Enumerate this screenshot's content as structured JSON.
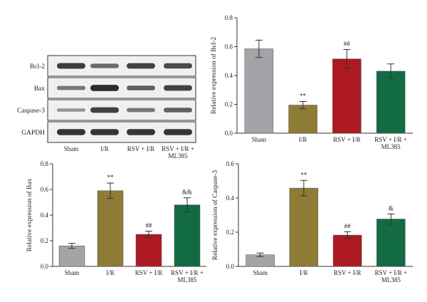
{
  "colors": {
    "sham": "#a3a3a8",
    "ir": "#8e7b36",
    "rsv_ir": "#ad1a22",
    "rsv_ir_ml385": "#126b42",
    "band": "#1a1a1a",
    "membrane": "#f0f0f0"
  },
  "blot": {
    "rows": [
      "Bcl-2",
      "Bax",
      "Caspase-3",
      "GAPDH"
    ],
    "lanes": [
      "Sham",
      "I/R",
      "RSV + I/R",
      "RSV + I/R +",
      "ML385"
    ],
    "band_intensity": [
      [
        0.85,
        0.55,
        0.8,
        0.75
      ],
      [
        0.45,
        0.95,
        0.6,
        0.8
      ],
      [
        0.25,
        0.8,
        0.45,
        0.6
      ],
      [
        0.9,
        0.9,
        0.9,
        0.9
      ]
    ]
  },
  "chart_data": [
    {
      "type": "bar",
      "id": "bcl2",
      "categories": [
        "Sham",
        "I/R",
        "RSV + I/R",
        "RSV + I/R + ML385"
      ],
      "category_lines": [
        [
          "Sham"
        ],
        [
          "I/R"
        ],
        [
          "RSV + I/R"
        ],
        [
          "RSV + I/R +",
          "ML385"
        ]
      ],
      "values": [
        0.585,
        0.195,
        0.515,
        0.43
      ],
      "errors": [
        0.06,
        0.025,
        0.065,
        0.05
      ],
      "annotations": [
        "",
        "**",
        "##",
        ""
      ],
      "ylabel": "Relative expression of Bcl-2",
      "ylim": [
        0,
        0.8
      ],
      "yticks": [
        "0.0",
        "0.2",
        "0.4",
        "0.6",
        "0.8"
      ]
    },
    {
      "type": "bar",
      "id": "bax",
      "categories": [
        "Sham",
        "I/R",
        "RSV + I/R",
        "RSV + I/R + ML385"
      ],
      "category_lines": [
        [
          "Sham"
        ],
        [
          "I/R"
        ],
        [
          "RSV + I/R"
        ],
        [
          "RSV + I/R +",
          "ML385"
        ]
      ],
      "values": [
        0.16,
        0.59,
        0.25,
        0.48
      ],
      "errors": [
        0.02,
        0.06,
        0.025,
        0.055
      ],
      "annotations": [
        "",
        "**",
        "##",
        "&&"
      ],
      "ylabel": "Relative expression of Bax",
      "ylim": [
        0,
        0.8
      ],
      "yticks": [
        "0.0",
        "0.2",
        "0.4",
        "0.6",
        "0.8"
      ]
    },
    {
      "type": "bar",
      "id": "caspase3",
      "categories": [
        "Sham",
        "I/R",
        "RSV + I/R",
        "RSV + I/R + ML385"
      ],
      "category_lines": [
        [
          "Sham"
        ],
        [
          "I/R"
        ],
        [
          "RSV + I/R"
        ],
        [
          "RSV + I/R +",
          "ML385"
        ]
      ],
      "values": [
        0.068,
        0.458,
        0.183,
        0.277
      ],
      "errors": [
        0.01,
        0.045,
        0.02,
        0.03
      ],
      "annotations": [
        "",
        "**",
        "##",
        "&"
      ],
      "ylabel": "Relative expression of Caspase-3",
      "ylim": [
        0,
        0.6
      ],
      "yticks": [
        "0.0",
        "0.2",
        "0.4",
        "0.6"
      ]
    }
  ]
}
